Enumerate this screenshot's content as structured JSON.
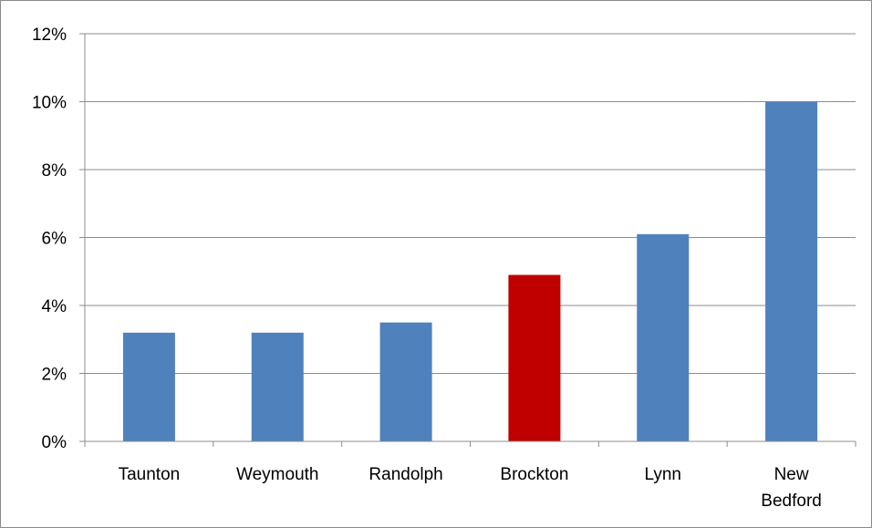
{
  "chart_data": {
    "type": "bar",
    "title": "",
    "xlabel": "",
    "ylabel": "",
    "categories": [
      "Taunton",
      "Weymouth",
      "Randolph",
      "Brockton",
      "Lynn",
      "New Bedford"
    ],
    "category_lines": [
      [
        "Taunton"
      ],
      [
        "Weymouth"
      ],
      [
        "Randolph"
      ],
      [
        "Brockton"
      ],
      [
        "Lynn"
      ],
      [
        "New",
        "Bedford"
      ]
    ],
    "values": [
      3.2,
      3.2,
      3.5,
      4.9,
      6.1,
      10.0
    ],
    "ylim": [
      0,
      12
    ],
    "yticks": [
      0,
      2,
      4,
      6,
      8,
      10,
      12
    ],
    "ytick_labels": [
      "0%",
      "2%",
      "4%",
      "6%",
      "8%",
      "10%",
      "12%"
    ],
    "grid": true,
    "legend": "none",
    "colors": {
      "default_bar": "#4f81bd",
      "highlight_bar": "#c00000",
      "highlight_category": "Brockton",
      "gridline": "#8c8c8c"
    }
  }
}
